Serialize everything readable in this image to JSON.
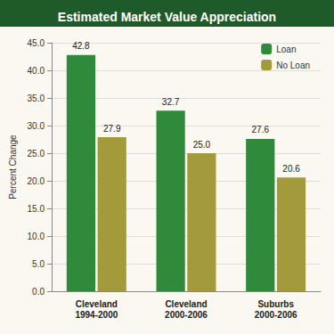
{
  "chart_data": {
    "type": "bar",
    "title": "Estimated Market Value Appreciation",
    "y_label": "Percent Change",
    "categories": [
      "Cleveland\n1994-2000",
      "Cleveland\n2000-2006",
      "Suburbs\n2000-2006"
    ],
    "series": [
      {
        "name": "Loan",
        "color": "#2f8a3c",
        "values": [
          42.8,
          32.7,
          27.6
        ],
        "value_labels": [
          "42.8",
          "32.7",
          "27.6"
        ]
      },
      {
        "name": "No Loan",
        "color": "#a39a3c",
        "values": [
          27.9,
          25.0,
          20.6
        ],
        "value_labels": [
          "27.9",
          "25.0",
          "20.6"
        ]
      }
    ],
    "ylim": [
      0,
      45
    ],
    "yticks": [
      {
        "value": 0,
        "label": "0.0"
      },
      {
        "value": 5,
        "label": "5.0"
      },
      {
        "value": 10,
        "label": "10.0"
      },
      {
        "value": 15,
        "label": "15.0"
      },
      {
        "value": 20,
        "label": "20.0"
      },
      {
        "value": 25,
        "label": "25.0"
      },
      {
        "value": 30,
        "label": "30.0"
      },
      {
        "value": 35,
        "label": "35.0"
      },
      {
        "value": 40,
        "label": "40.0"
      },
      {
        "value": 45,
        "label": "45.0"
      }
    ],
    "grid": true,
    "legend": "upper right",
    "data_labels": true
  }
}
